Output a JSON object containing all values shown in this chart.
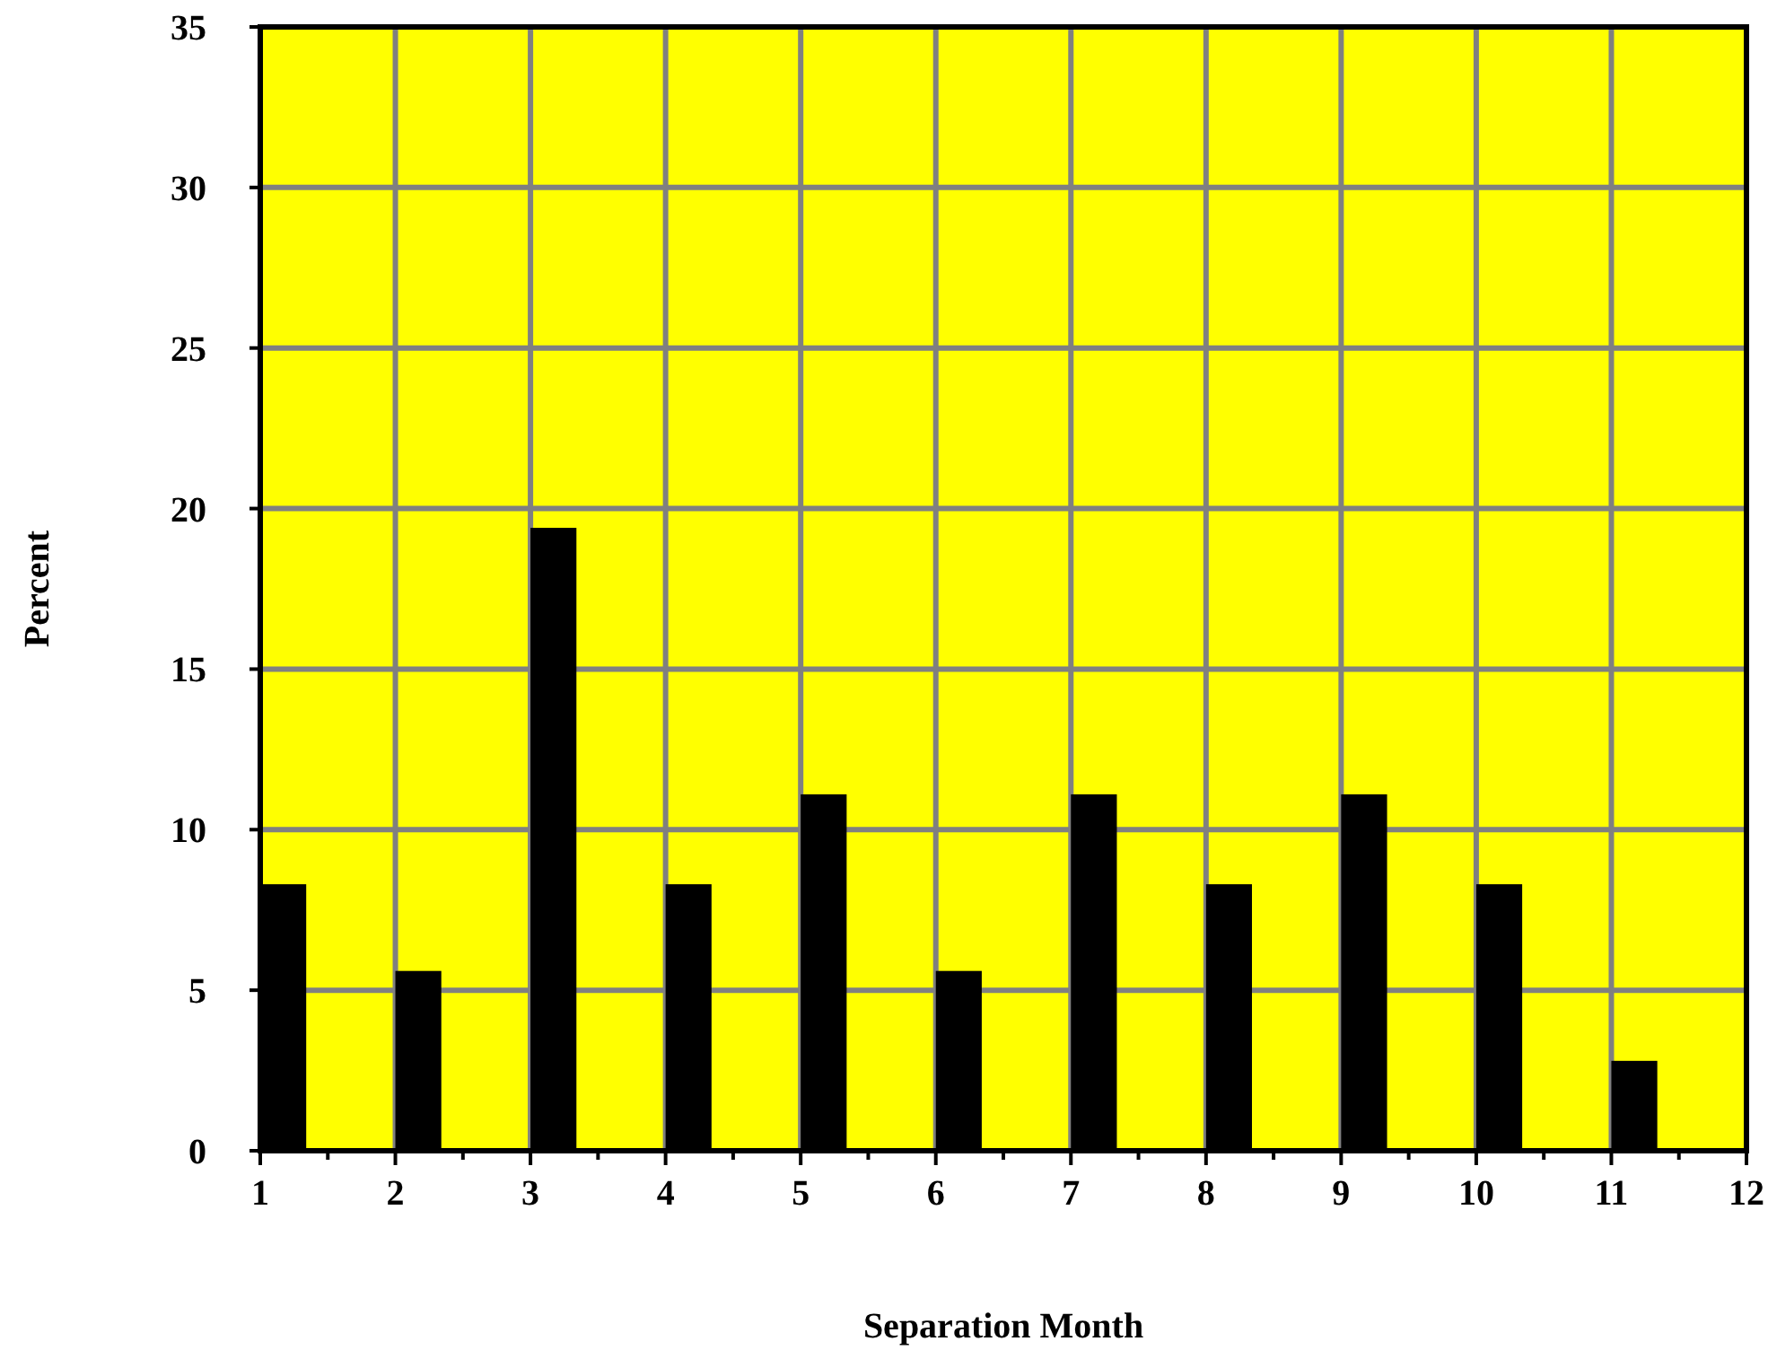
{
  "chart_data": {
    "type": "bar",
    "xlabel": "Separation Month",
    "ylabel": "Percent",
    "x": [
      1.17,
      2.17,
      3.17,
      4.17,
      5.17,
      6.17,
      7.17,
      8.17,
      9.17,
      10.17,
      11.17
    ],
    "values": [
      8.3,
      5.6,
      19.4,
      8.3,
      11.1,
      5.6,
      11.1,
      8.3,
      11.1,
      8.3,
      2.8
    ],
    "color": "#000000",
    "xlim": [
      1,
      12
    ],
    "xticks": [
      1,
      {
        "value": 1.5,
        "label": null
      },
      2,
      {
        "value": 2.5,
        "label": null
      },
      3,
      {
        "value": 3.5,
        "label": null
      },
      4,
      {
        "value": 4.5,
        "label": null
      },
      5,
      {
        "value": 5.5,
        "label": null
      },
      6,
      {
        "value": 6.5,
        "label": null
      },
      7,
      {
        "value": 7.5,
        "label": null
      },
      8,
      {
        "value": 8.5,
        "label": null
      },
      9,
      {
        "value": 9.5,
        "label": null
      },
      10,
      {
        "value": 10.5,
        "label": null
      },
      11,
      {
        "value": 11.5,
        "label": null
      },
      12
    ],
    "ylim": [
      0,
      35
    ],
    "yticks": [
      0,
      5,
      10,
      15,
      20,
      25,
      30,
      35
    ],
    "grid": true
  }
}
